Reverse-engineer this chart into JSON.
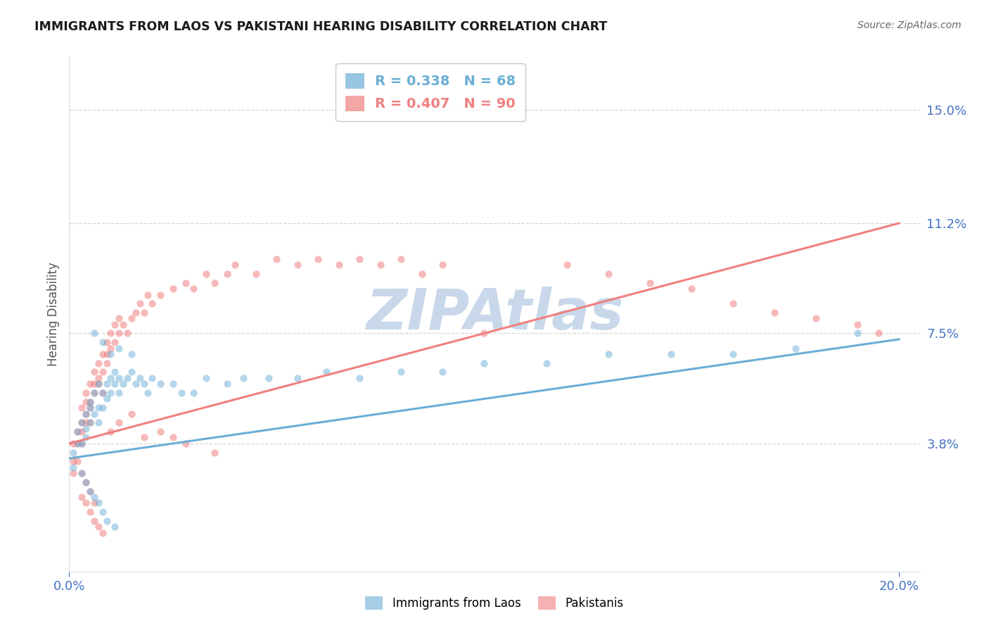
{
  "title": "IMMIGRANTS FROM LAOS VS PAKISTANI HEARING DISABILITY CORRELATION CHART",
  "source": "Source: ZipAtlas.com",
  "ylabel": "Hearing Disability",
  "xlim": [
    0.0,
    0.205
  ],
  "ylim": [
    -0.005,
    0.168
  ],
  "xtick_labels": [
    "0.0%",
    "20.0%"
  ],
  "xtick_positions": [
    0.0,
    0.2
  ],
  "ytick_labels": [
    "3.8%",
    "7.5%",
    "11.2%",
    "15.0%"
  ],
  "ytick_positions": [
    0.038,
    0.075,
    0.112,
    0.15
  ],
  "legend_r_blue": "R = 0.338",
  "legend_n_blue": "N = 68",
  "legend_r_pink": "R = 0.407",
  "legend_n_pink": "N = 90",
  "legend_labels": [
    "Immigrants from Laos",
    "Pakistanis"
  ],
  "blue_color": "#6BAED6",
  "pink_color": "#F08080",
  "watermark": "ZIPAtlas",
  "watermark_color": "#C8D8EA",
  "blue_scatter_x": [
    0.001,
    0.001,
    0.002,
    0.002,
    0.003,
    0.003,
    0.004,
    0.004,
    0.004,
    0.005,
    0.005,
    0.005,
    0.006,
    0.006,
    0.007,
    0.007,
    0.007,
    0.008,
    0.008,
    0.009,
    0.009,
    0.01,
    0.01,
    0.011,
    0.011,
    0.012,
    0.012,
    0.013,
    0.014,
    0.015,
    0.016,
    0.017,
    0.018,
    0.019,
    0.02,
    0.022,
    0.025,
    0.027,
    0.03,
    0.033,
    0.038,
    0.042,
    0.048,
    0.055,
    0.062,
    0.07,
    0.08,
    0.09,
    0.1,
    0.115,
    0.13,
    0.145,
    0.16,
    0.175,
    0.19,
    0.006,
    0.008,
    0.01,
    0.012,
    0.015,
    0.003,
    0.004,
    0.005,
    0.006,
    0.007,
    0.008,
    0.009,
    0.011
  ],
  "blue_scatter_y": [
    0.03,
    0.035,
    0.038,
    0.042,
    0.038,
    0.045,
    0.04,
    0.048,
    0.043,
    0.05,
    0.045,
    0.052,
    0.048,
    0.055,
    0.05,
    0.058,
    0.045,
    0.055,
    0.05,
    0.058,
    0.053,
    0.06,
    0.055,
    0.058,
    0.062,
    0.055,
    0.06,
    0.058,
    0.06,
    0.062,
    0.058,
    0.06,
    0.058,
    0.055,
    0.06,
    0.058,
    0.058,
    0.055,
    0.055,
    0.06,
    0.058,
    0.06,
    0.06,
    0.06,
    0.062,
    0.06,
    0.062,
    0.062,
    0.065,
    0.065,
    0.068,
    0.068,
    0.068,
    0.07,
    0.075,
    0.075,
    0.072,
    0.068,
    0.07,
    0.068,
    0.028,
    0.025,
    0.022,
    0.02,
    0.018,
    0.015,
    0.012,
    0.01
  ],
  "pink_scatter_x": [
    0.001,
    0.001,
    0.001,
    0.002,
    0.002,
    0.002,
    0.003,
    0.003,
    0.003,
    0.003,
    0.004,
    0.004,
    0.004,
    0.004,
    0.005,
    0.005,
    0.005,
    0.005,
    0.006,
    0.006,
    0.006,
    0.007,
    0.007,
    0.007,
    0.008,
    0.008,
    0.008,
    0.009,
    0.009,
    0.009,
    0.01,
    0.01,
    0.011,
    0.011,
    0.012,
    0.012,
    0.013,
    0.014,
    0.015,
    0.016,
    0.017,
    0.018,
    0.019,
    0.02,
    0.022,
    0.025,
    0.028,
    0.03,
    0.033,
    0.035,
    0.038,
    0.04,
    0.045,
    0.05,
    0.055,
    0.06,
    0.065,
    0.07,
    0.075,
    0.08,
    0.085,
    0.09,
    0.01,
    0.012,
    0.015,
    0.018,
    0.022,
    0.025,
    0.028,
    0.035,
    0.003,
    0.004,
    0.005,
    0.006,
    0.007,
    0.008,
    0.003,
    0.004,
    0.005,
    0.006,
    0.12,
    0.13,
    0.14,
    0.15,
    0.16,
    0.17,
    0.18,
    0.19,
    0.195,
    0.1
  ],
  "pink_scatter_y": [
    0.028,
    0.032,
    0.038,
    0.032,
    0.038,
    0.042,
    0.038,
    0.045,
    0.042,
    0.05,
    0.048,
    0.052,
    0.045,
    0.055,
    0.05,
    0.058,
    0.045,
    0.052,
    0.055,
    0.062,
    0.058,
    0.058,
    0.065,
    0.06,
    0.062,
    0.068,
    0.055,
    0.068,
    0.065,
    0.072,
    0.07,
    0.075,
    0.072,
    0.078,
    0.075,
    0.08,
    0.078,
    0.075,
    0.08,
    0.082,
    0.085,
    0.082,
    0.088,
    0.085,
    0.088,
    0.09,
    0.092,
    0.09,
    0.095,
    0.092,
    0.095,
    0.098,
    0.095,
    0.1,
    0.098,
    0.1,
    0.098,
    0.1,
    0.098,
    0.1,
    0.095,
    0.098,
    0.042,
    0.045,
    0.048,
    0.04,
    0.042,
    0.04,
    0.038,
    0.035,
    0.02,
    0.018,
    0.015,
    0.012,
    0.01,
    0.008,
    0.028,
    0.025,
    0.022,
    0.018,
    0.098,
    0.095,
    0.092,
    0.09,
    0.085,
    0.082,
    0.08,
    0.078,
    0.075,
    0.075
  ],
  "blue_trend_x": [
    0.0,
    0.2
  ],
  "blue_trend_y": [
    0.033,
    0.073
  ],
  "pink_trend_x": [
    0.0,
    0.2
  ],
  "pink_trend_y": [
    0.038,
    0.112
  ],
  "background_color": "#FFFFFF",
  "grid_color": "#CCCCCC",
  "title_color": "#1A1A1A",
  "source_color": "#666666",
  "axis_color": "#4472C4",
  "ylabel_color": "#555555"
}
